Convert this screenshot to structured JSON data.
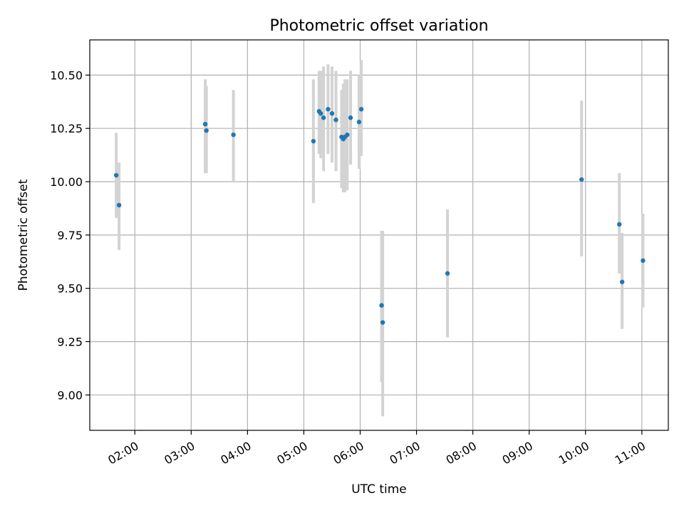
{
  "chart_data": {
    "type": "scatter",
    "title": "Photometric offset variation",
    "xlabel": "UTC time",
    "ylabel": "Photometric offset",
    "grid": true,
    "xlim_hours": [
      1.2,
      11.47
    ],
    "ylim": [
      8.834,
      10.665
    ],
    "x_ticks": [
      {
        "hour": 2,
        "label": "02:00"
      },
      {
        "hour": 3,
        "label": "03:00"
      },
      {
        "hour": 4,
        "label": "04:00"
      },
      {
        "hour": 5,
        "label": "05:00"
      },
      {
        "hour": 6,
        "label": "06:00"
      },
      {
        "hour": 7,
        "label": "07:00"
      },
      {
        "hour": 8,
        "label": "08:00"
      },
      {
        "hour": 9,
        "label": "09:00"
      },
      {
        "hour": 10,
        "label": "10:00"
      },
      {
        "hour": 11,
        "label": "11:00"
      }
    ],
    "y_ticks": [
      {
        "value": 9.0,
        "label": "9.00"
      },
      {
        "value": 9.25,
        "label": "9.25"
      },
      {
        "value": 9.5,
        "label": "9.50"
      },
      {
        "value": 9.75,
        "label": "9.75"
      },
      {
        "value": 10.0,
        "label": "10.00"
      },
      {
        "value": 10.25,
        "label": "10.25"
      },
      {
        "value": 10.5,
        "label": "10.50"
      }
    ],
    "colors": {
      "point": "#1f77b4",
      "errorbar": "#d3d3d3",
      "grid": "#b0b0b0"
    },
    "series": [
      {
        "name": "offset",
        "points": [
          {
            "t": 1.67,
            "y": 10.03,
            "lo": 9.83,
            "hi": 10.23
          },
          {
            "t": 1.72,
            "y": 9.89,
            "lo": 9.68,
            "hi": 10.09
          },
          {
            "t": 3.25,
            "y": 10.27,
            "lo": 10.04,
            "hi": 10.48
          },
          {
            "t": 3.27,
            "y": 10.24,
            "lo": 10.04,
            "hi": 10.45
          },
          {
            "t": 3.75,
            "y": 10.22,
            "lo": 10.0,
            "hi": 10.43
          },
          {
            "t": 5.17,
            "y": 10.19,
            "lo": 9.9,
            "hi": 10.48
          },
          {
            "t": 5.27,
            "y": 10.33,
            "lo": 10.13,
            "hi": 10.52
          },
          {
            "t": 5.3,
            "y": 10.32,
            "lo": 10.11,
            "hi": 10.52
          },
          {
            "t": 5.35,
            "y": 10.3,
            "lo": 10.05,
            "hi": 10.54
          },
          {
            "t": 5.43,
            "y": 10.34,
            "lo": 10.13,
            "hi": 10.55
          },
          {
            "t": 5.5,
            "y": 10.32,
            "lo": 10.09,
            "hi": 10.54
          },
          {
            "t": 5.57,
            "y": 10.29,
            "lo": 10.05,
            "hi": 10.52
          },
          {
            "t": 5.67,
            "y": 10.21,
            "lo": 9.97,
            "hi": 10.43
          },
          {
            "t": 5.7,
            "y": 10.2,
            "lo": 9.95,
            "hi": 10.46
          },
          {
            "t": 5.73,
            "y": 10.21,
            "lo": 9.95,
            "hi": 10.48
          },
          {
            "t": 5.77,
            "y": 10.22,
            "lo": 9.96,
            "hi": 10.48
          },
          {
            "t": 5.83,
            "y": 10.3,
            "lo": 10.08,
            "hi": 10.52
          },
          {
            "t": 5.98,
            "y": 10.28,
            "lo": 10.06,
            "hi": 10.5
          },
          {
            "t": 6.02,
            "y": 10.34,
            "lo": 10.12,
            "hi": 10.57
          },
          {
            "t": 6.38,
            "y": 9.42,
            "lo": 9.06,
            "hi": 9.77
          },
          {
            "t": 6.4,
            "y": 9.34,
            "lo": 8.9,
            "hi": 9.77
          },
          {
            "t": 7.55,
            "y": 9.57,
            "lo": 9.27,
            "hi": 9.87
          },
          {
            "t": 9.93,
            "y": 10.01,
            "lo": 9.65,
            "hi": 10.38
          },
          {
            "t": 10.6,
            "y": 9.8,
            "lo": 9.57,
            "hi": 10.04
          },
          {
            "t": 10.65,
            "y": 9.53,
            "lo": 9.31,
            "hi": 9.76
          },
          {
            "t": 11.02,
            "y": 9.63,
            "lo": 9.41,
            "hi": 9.85
          }
        ]
      }
    ]
  }
}
